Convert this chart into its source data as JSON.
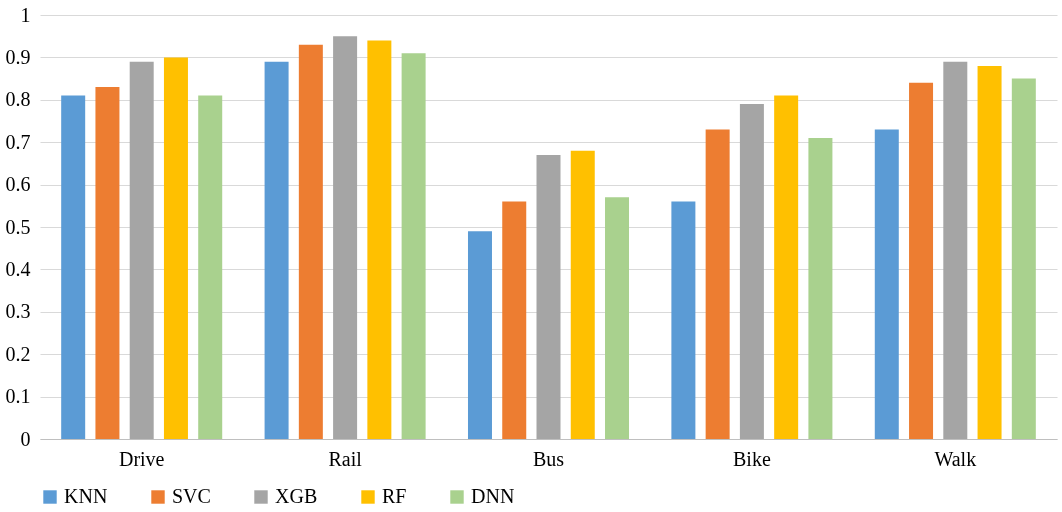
{
  "chart_data": {
    "type": "bar",
    "categories": [
      "Drive",
      "Rail",
      "Bus",
      "Bike",
      "Walk"
    ],
    "series": [
      {
        "name": "KNN",
        "color": "#5b9bd5",
        "values": [
          0.81,
          0.89,
          0.49,
          0.56,
          0.73
        ]
      },
      {
        "name": "SVC",
        "color": "#ed7d31",
        "values": [
          0.83,
          0.93,
          0.56,
          0.73,
          0.84
        ]
      },
      {
        "name": "XGB",
        "color": "#a5a5a5",
        "values": [
          0.89,
          0.95,
          0.67,
          0.79,
          0.89
        ]
      },
      {
        "name": "RF",
        "color": "#ffc000",
        "values": [
          0.9,
          0.94,
          0.68,
          0.81,
          0.88
        ]
      },
      {
        "name": "DNN",
        "color": "#a9d18e",
        "values": [
          0.81,
          0.91,
          0.57,
          0.71,
          0.85
        ]
      }
    ],
    "ylim": [
      0,
      1
    ],
    "yticks": [
      0,
      0.1,
      0.2,
      0.3,
      0.4,
      0.5,
      0.6,
      0.7,
      0.8,
      0.9,
      1
    ],
    "grid": "y",
    "legend": "bottom"
  }
}
